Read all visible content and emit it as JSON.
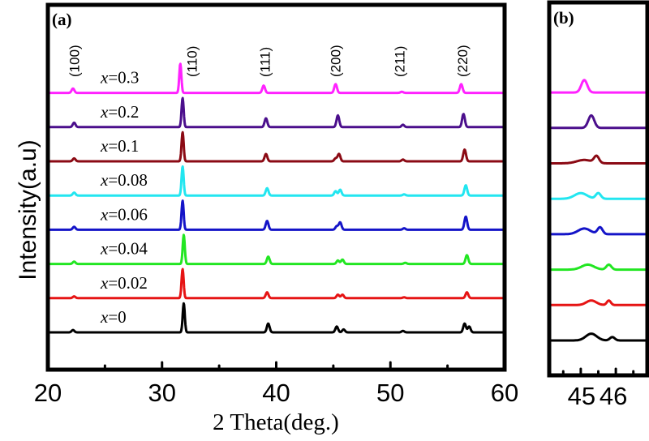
{
  "chart_data": [
    {
      "panel": "(a)",
      "type": "line",
      "xlabel": "2 Theta(deg.)",
      "ylabel": "Intensity(a.u)",
      "xlim": [
        20,
        60
      ],
      "x_ticks": [
        20,
        30,
        40,
        50,
        60
      ],
      "x_minor_ticks": [
        25,
        35,
        45,
        55
      ],
      "hkl_annotations": [
        {
          "label": "(100)",
          "x": 22.3
        },
        {
          "label": "(110)",
          "x": 32.6
        },
        {
          "label": "(111)",
          "x": 39.0
        },
        {
          "label": "(200)",
          "x": 45.2
        },
        {
          "label": "(211)",
          "x": 50.8
        },
        {
          "label": "(220)",
          "x": 56.3
        }
      ],
      "series": [
        {
          "name": "x=0.3",
          "var": "x",
          "value": "=0.3",
          "color": "#ff22ff",
          "offset": 7,
          "peaks": [
            [
              22.2,
              0.15
            ],
            [
              31.6,
              1.0
            ],
            [
              38.9,
              0.25
            ],
            [
              45.2,
              0.3
            ],
            [
              51.0,
              0.04
            ],
            [
              56.2,
              0.3
            ]
          ]
        },
        {
          "name": "x=0.2",
          "var": "x",
          "value": "=0.2",
          "color": "#4b0f8c",
          "offset": 6,
          "peaks": [
            [
              22.3,
              0.15
            ],
            [
              31.8,
              1.0
            ],
            [
              39.1,
              0.3
            ],
            [
              45.4,
              0.4
            ],
            [
              51.1,
              0.08
            ],
            [
              56.4,
              0.45
            ]
          ]
        },
        {
          "name": "x=0.1",
          "var": "x",
          "value": "=0.1",
          "color": "#8b0a14",
          "offset": 5,
          "peaks": [
            [
              22.3,
              0.1
            ],
            [
              31.8,
              1.0
            ],
            [
              39.1,
              0.25
            ],
            [
              45.2,
              0.1
            ],
            [
              45.5,
              0.25
            ],
            [
              51.1,
              0.06
            ],
            [
              56.5,
              0.4
            ]
          ]
        },
        {
          "name": "x=0.08",
          "var": "x",
          "value": "=0.08",
          "color": "#22e6f0",
          "offset": 4,
          "peaks": [
            [
              22.3,
              0.1
            ],
            [
              31.8,
              1.0
            ],
            [
              39.2,
              0.25
            ],
            [
              45.2,
              0.15
            ],
            [
              45.6,
              0.2
            ],
            [
              51.2,
              0.04
            ],
            [
              56.6,
              0.35
            ]
          ]
        },
        {
          "name": "x=0.06",
          "var": "x",
          "value": "=0.06",
          "color": "#1414c8",
          "offset": 3,
          "peaks": [
            [
              22.3,
              0.1
            ],
            [
              31.8,
              1.0
            ],
            [
              39.2,
              0.3
            ],
            [
              45.3,
              0.12
            ],
            [
              45.6,
              0.25
            ],
            [
              51.2,
              0.05
            ],
            [
              56.6,
              0.45
            ]
          ]
        },
        {
          "name": "x=0.04",
          "var": "x",
          "value": "=0.04",
          "color": "#22e622",
          "offset": 2,
          "peaks": [
            [
              22.3,
              0.08
            ],
            [
              31.9,
              1.0
            ],
            [
              39.3,
              0.25
            ],
            [
              45.4,
              0.12
            ],
            [
              45.8,
              0.15
            ],
            [
              51.3,
              0.04
            ],
            [
              56.7,
              0.3
            ]
          ]
        },
        {
          "name": "x=0.02",
          "var": "x",
          "value": "=0.02",
          "color": "#e61414",
          "offset": 1,
          "peaks": [
            [
              22.3,
              0.06
            ],
            [
              31.8,
              1.0
            ],
            [
              39.2,
              0.2
            ],
            [
              45.4,
              0.12
            ],
            [
              45.8,
              0.12
            ],
            [
              51.2,
              0.03
            ],
            [
              56.7,
              0.2
            ]
          ]
        },
        {
          "name": "x=0",
          "var": "x",
          "value": "=0",
          "color": "#000000",
          "offset": 0,
          "peaks": [
            [
              22.2,
              0.08
            ],
            [
              31.9,
              1.0
            ],
            [
              39.3,
              0.3
            ],
            [
              45.3,
              0.2
            ],
            [
              45.9,
              0.1
            ],
            [
              51.1,
              0.05
            ],
            [
              56.5,
              0.3
            ],
            [
              56.9,
              0.2
            ]
          ]
        }
      ]
    },
    {
      "panel": "(b)",
      "type": "line",
      "xlabel": "",
      "ylabel": "",
      "xlim": [
        44.1,
        46.9
      ],
      "x_ticks": [
        45,
        46
      ],
      "x_tick_labels": [
        "45",
        "46"
      ],
      "x_minor_ticks": [
        44.5,
        45.5,
        46.5
      ],
      "series": [
        {
          "name": "x=0.3",
          "color": "#ff22ff",
          "offset": 7,
          "peaks": [
            [
              45.1,
              0.55,
              0.12
            ]
          ]
        },
        {
          "name": "x=0.2",
          "color": "#4b0f8c",
          "offset": 6,
          "peaks": [
            [
              45.3,
              0.55,
              0.12
            ]
          ]
        },
        {
          "name": "x=0.1",
          "color": "#8b0a14",
          "offset": 5,
          "peaks": [
            [
              45.1,
              0.15,
              0.3
            ],
            [
              45.45,
              0.3,
              0.1
            ]
          ]
        },
        {
          "name": "x=0.08",
          "color": "#22e6f0",
          "offset": 4,
          "peaks": [
            [
              45.0,
              0.25,
              0.25
            ],
            [
              45.5,
              0.25,
              0.1
            ]
          ]
        },
        {
          "name": "x=0.06",
          "color": "#1414c8",
          "offset": 3,
          "peaks": [
            [
              45.1,
              0.25,
              0.25
            ],
            [
              45.55,
              0.3,
              0.1
            ]
          ]
        },
        {
          "name": "x=0.04",
          "color": "#22e622",
          "offset": 2,
          "peaks": [
            [
              45.2,
              0.22,
              0.25
            ],
            [
              45.8,
              0.22,
              0.1
            ]
          ]
        },
        {
          "name": "x=0.02",
          "color": "#e61414",
          "offset": 1,
          "peaks": [
            [
              45.3,
              0.2,
              0.2
            ],
            [
              45.8,
              0.2,
              0.08
            ]
          ]
        },
        {
          "name": "x=0",
          "color": "#000000",
          "offset": 0,
          "peaks": [
            [
              45.3,
              0.3,
              0.22
            ],
            [
              45.9,
              0.15,
              0.1
            ]
          ]
        }
      ]
    }
  ]
}
